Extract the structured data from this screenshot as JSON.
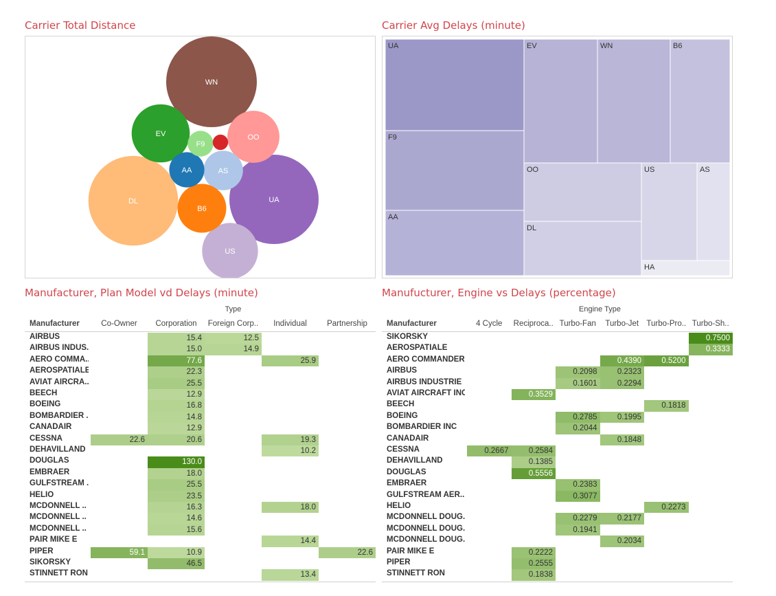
{
  "titles": {
    "bubble": "Carrier Total Distance",
    "treemap": "Carrier Avg Delays (minute)",
    "table1": "Manufacturer, Plan Model vd Delays (minute)",
    "table2": "Manufucturer, Engine vs Delays (percentage)"
  },
  "chart_data": [
    {
      "type": "bubble",
      "title": "Carrier Total Distance",
      "series": [
        {
          "name": "WN",
          "value": 100,
          "color": "#8c564b"
        },
        {
          "name": "DL",
          "value": 98,
          "color": "#ffbb78"
        },
        {
          "name": "UA",
          "value": 97,
          "color": "#9467bd"
        },
        {
          "name": "EV",
          "value": 41,
          "color": "#2ca02c"
        },
        {
          "name": "US",
          "value": 38,
          "color": "#c5b0d5"
        },
        {
          "name": "OO",
          "value": 33,
          "color": "#ff9896"
        },
        {
          "name": "AS",
          "value": 19,
          "color": "#aec7e8"
        },
        {
          "name": "B6",
          "value": 29,
          "color": "#ff7f0e"
        },
        {
          "name": "AA",
          "value": 15,
          "color": "#1f77b4"
        },
        {
          "name": "F9",
          "value": 8,
          "color": "#98df8a"
        },
        {
          "name": "",
          "value": 2.9,
          "color": "#d62728"
        }
      ]
    },
    {
      "type": "treemap",
      "title": "Carrier Avg Delays (minute)",
      "cells": [
        {
          "name": "UA",
          "value": 100,
          "color": "#9b98c8"
        },
        {
          "name": "F9",
          "value": 77,
          "color": "#aba8d0"
        },
        {
          "name": "AA",
          "value": 67,
          "color": "#b4b2d6"
        },
        {
          "name": "EV",
          "value": 63,
          "color": "#b6b3d6"
        },
        {
          "name": "WN",
          "value": 63,
          "color": "#b9b6d8"
        },
        {
          "name": "B6",
          "value": 59,
          "color": "#c3c1dd"
        },
        {
          "name": "OO",
          "value": 51,
          "color": "#cecce3"
        },
        {
          "name": "DL",
          "value": 50,
          "color": "#d1cfe5"
        },
        {
          "name": "US",
          "value": 30,
          "color": "#d7d6e9"
        },
        {
          "name": "AS",
          "value": 15,
          "color": "#e2e1ef"
        },
        {
          "name": "HA",
          "value": 8,
          "color": "#ebebf4"
        }
      ]
    },
    {
      "type": "table",
      "title": "Manufacturer, Plan Model vd Delays (minute)",
      "group_header": "Type",
      "row_header": "Manufacturer",
      "columns": [
        "Co-Owner",
        "Corporation",
        "Foreign Corp..",
        "Individual",
        "Partnership"
      ],
      "vmax": 130,
      "rows": [
        {
          "name": "AIRBUS",
          "values": [
            null,
            15.4,
            12.5,
            null,
            null
          ]
        },
        {
          "name": "AIRBUS INDUS..",
          "values": [
            null,
            15.0,
            14.9,
            null,
            null
          ]
        },
        {
          "name": "AERO COMMA..",
          "values": [
            null,
            77.6,
            null,
            25.9,
            null
          ]
        },
        {
          "name": "AEROSPATIALE",
          "values": [
            null,
            22.3,
            null,
            null,
            null
          ]
        },
        {
          "name": "AVIAT AIRCRA..",
          "values": [
            null,
            25.5,
            null,
            null,
            null
          ]
        },
        {
          "name": "BEECH",
          "values": [
            null,
            12.9,
            null,
            null,
            null
          ]
        },
        {
          "name": "BOEING",
          "values": [
            null,
            16.8,
            null,
            null,
            null
          ]
        },
        {
          "name": "BOMBARDIER ..",
          "values": [
            null,
            14.8,
            null,
            null,
            null
          ]
        },
        {
          "name": "CANADAIR",
          "values": [
            null,
            12.9,
            null,
            null,
            null
          ]
        },
        {
          "name": "CESSNA",
          "values": [
            22.6,
            20.6,
            null,
            19.3,
            null
          ]
        },
        {
          "name": "DEHAVILLAND",
          "values": [
            null,
            null,
            null,
            10.2,
            null
          ]
        },
        {
          "name": "DOUGLAS",
          "values": [
            null,
            130.0,
            null,
            null,
            null
          ]
        },
        {
          "name": "EMBRAER",
          "values": [
            null,
            18.0,
            null,
            null,
            null
          ]
        },
        {
          "name": "GULFSTREAM ..",
          "values": [
            null,
            25.5,
            null,
            null,
            null
          ]
        },
        {
          "name": "HELIO",
          "values": [
            null,
            23.5,
            null,
            null,
            null
          ]
        },
        {
          "name": "MCDONNELL ..",
          "values": [
            null,
            16.3,
            null,
            18.0,
            null
          ]
        },
        {
          "name": "MCDONNELL ..",
          "values": [
            null,
            14.6,
            null,
            null,
            null
          ]
        },
        {
          "name": "MCDONNELL ..",
          "values": [
            null,
            15.6,
            null,
            null,
            null
          ]
        },
        {
          "name": "PAIR MIKE E",
          "values": [
            null,
            null,
            null,
            14.4,
            null
          ]
        },
        {
          "name": "PIPER",
          "values": [
            59.1,
            10.9,
            null,
            null,
            22.6
          ]
        },
        {
          "name": "SIKORSKY",
          "values": [
            null,
            46.5,
            null,
            null,
            null
          ]
        },
        {
          "name": "STINNETT RON",
          "values": [
            null,
            null,
            null,
            13.4,
            null
          ]
        }
      ]
    },
    {
      "type": "table",
      "title": "Manufucturer, Engine vs Delays (percentage)",
      "group_header": "Engine Type",
      "row_header": "Manufacturer",
      "columns": [
        "4 Cycle",
        "Reciproca..",
        "Turbo-Fan",
        "Turbo-Jet",
        "Turbo-Pro..",
        "Turbo-Sh.."
      ],
      "vmax": 0.75,
      "rows": [
        {
          "name": "SIKORSKY",
          "values": [
            null,
            null,
            null,
            null,
            null,
            0.75
          ]
        },
        {
          "name": "AEROSPATIALE",
          "values": [
            null,
            null,
            null,
            null,
            null,
            0.3333
          ]
        },
        {
          "name": "AERO COMMANDER",
          "values": [
            null,
            null,
            null,
            0.439,
            0.52,
            null
          ]
        },
        {
          "name": "AIRBUS",
          "values": [
            null,
            null,
            0.2098,
            0.2323,
            null,
            null
          ]
        },
        {
          "name": "AIRBUS INDUSTRIE",
          "values": [
            null,
            null,
            0.1601,
            0.2294,
            null,
            null
          ]
        },
        {
          "name": "AVIAT AIRCRAFT INC",
          "values": [
            null,
            0.3529,
            null,
            null,
            null,
            null
          ]
        },
        {
          "name": "BEECH",
          "values": [
            null,
            null,
            null,
            null,
            0.1818,
            null
          ]
        },
        {
          "name": "BOEING",
          "values": [
            null,
            null,
            0.2785,
            0.1995,
            null,
            null
          ]
        },
        {
          "name": "BOMBARDIER INC",
          "values": [
            null,
            null,
            0.2044,
            null,
            null,
            null
          ]
        },
        {
          "name": "CANADAIR",
          "values": [
            null,
            null,
            null,
            0.1848,
            null,
            null
          ]
        },
        {
          "name": "CESSNA",
          "values": [
            0.2667,
            0.2584,
            null,
            null,
            null,
            null
          ]
        },
        {
          "name": "DEHAVILLAND",
          "values": [
            null,
            0.1385,
            null,
            null,
            null,
            null
          ]
        },
        {
          "name": "DOUGLAS",
          "values": [
            null,
            0.5556,
            null,
            null,
            null,
            null
          ]
        },
        {
          "name": "EMBRAER",
          "values": [
            null,
            null,
            0.2383,
            null,
            null,
            null
          ]
        },
        {
          "name": "GULFSTREAM AER..",
          "values": [
            null,
            null,
            0.3077,
            null,
            null,
            null
          ]
        },
        {
          "name": "HELIO",
          "values": [
            null,
            null,
            null,
            null,
            0.2273,
            null
          ]
        },
        {
          "name": "MCDONNELL DOUG..",
          "values": [
            null,
            null,
            0.2279,
            0.2177,
            null,
            null
          ]
        },
        {
          "name": "MCDONNELL DOUG..",
          "values": [
            null,
            null,
            0.1941,
            null,
            null,
            null
          ]
        },
        {
          "name": "MCDONNELL DOUG..",
          "values": [
            null,
            null,
            null,
            0.2034,
            null,
            null
          ]
        },
        {
          "name": "PAIR MIKE E",
          "values": [
            null,
            0.2222,
            null,
            null,
            null,
            null
          ]
        },
        {
          "name": "PIPER",
          "values": [
            null,
            0.2555,
            null,
            null,
            null,
            null
          ]
        },
        {
          "name": "STINNETT RON",
          "values": [
            null,
            0.1838,
            null,
            null,
            null,
            null
          ]
        }
      ]
    }
  ]
}
